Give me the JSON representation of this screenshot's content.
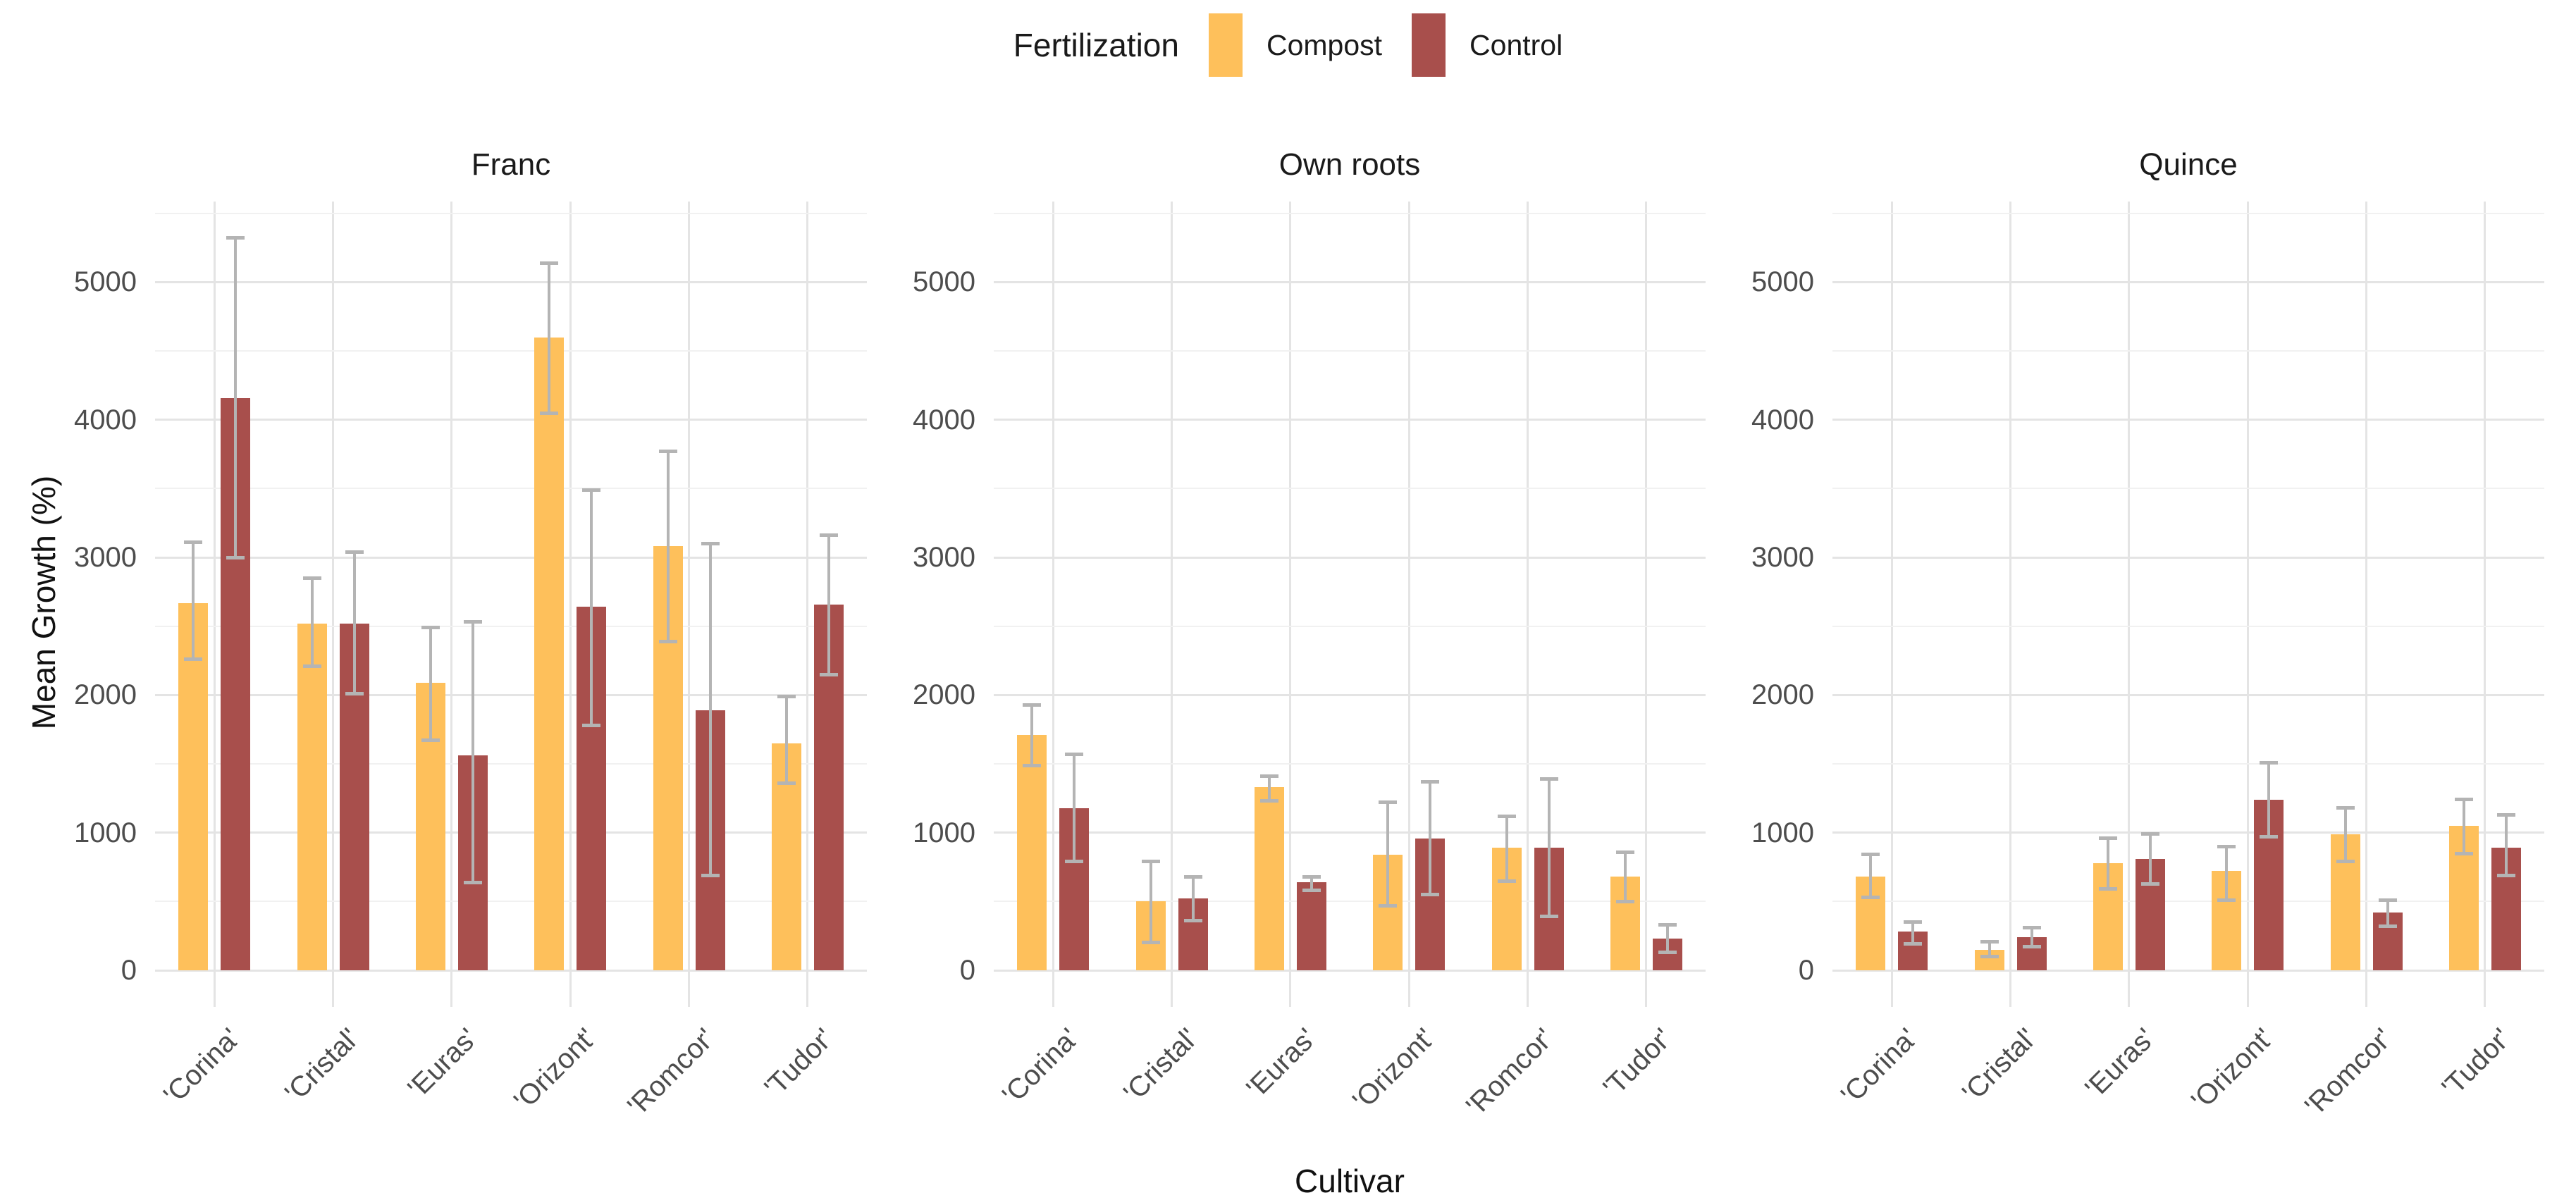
{
  "legend": {
    "title": "Fertilization",
    "items": [
      {
        "label": "Compost",
        "color": "#FEC05B"
      },
      {
        "label": "Control",
        "color": "#A84F4C"
      }
    ]
  },
  "chart_data": {
    "type": "bar",
    "title": "",
    "xlabel": "Cultivar",
    "ylabel": "Mean Growth (%)",
    "categories": [
      "'Corina'",
      "'Cristal'",
      "'Euras'",
      "'Orizont'",
      "'Romcor'",
      "'Tudor'"
    ],
    "y_ticks": [
      0,
      1000,
      2000,
      3000,
      4000,
      5000
    ],
    "ylim": [
      -266,
      5586
    ],
    "grid": "white background, light grey major gridlines every 1000 and minor every 500 (ggplot theme_minimal)",
    "legend_position": "top-center",
    "error_bars": true,
    "bar_layout": "dodged pairs per cultivar",
    "facets": [
      {
        "title": "Franc",
        "series": [
          {
            "name": "Compost",
            "values": [
              2670,
              2520,
              2090,
              4600,
              3080,
              1650
            ],
            "err_low": [
              2260,
              2210,
              1670,
              4050,
              2390,
              1360
            ],
            "err_high": [
              3110,
              2850,
              2490,
              5140,
              3770,
              1990
            ]
          },
          {
            "name": "Control",
            "values": [
              4160,
              2520,
              1560,
              2640,
              1890,
              2660
            ],
            "err_low": [
              3000,
              2010,
              640,
              1780,
              690,
              2150
            ],
            "err_high": [
              5320,
              3040,
              2530,
              3490,
              3100,
              3160
            ]
          }
        ]
      },
      {
        "title": "Own roots",
        "series": [
          {
            "name": "Compost",
            "values": [
              1710,
              500,
              1330,
              840,
              890,
              680
            ],
            "err_low": [
              1490,
              200,
              1230,
              470,
              650,
              500
            ],
            "err_high": [
              1930,
              790,
              1410,
              1220,
              1120,
              860
            ]
          },
          {
            "name": "Control",
            "values": [
              1180,
              520,
              640,
              960,
              890,
              230
            ],
            "err_low": [
              790,
              360,
              580,
              550,
              390,
              130
            ],
            "err_high": [
              1570,
              680,
              680,
              1370,
              1390,
              330
            ]
          }
        ]
      },
      {
        "title": "Quince",
        "series": [
          {
            "name": "Compost",
            "values": [
              680,
              150,
              780,
              720,
              990,
              1050
            ],
            "err_low": [
              530,
              100,
              590,
              510,
              790,
              850
            ],
            "err_high": [
              840,
              210,
              960,
              900,
              1180,
              1240
            ]
          },
          {
            "name": "Control",
            "values": [
              280,
              240,
              810,
              1240,
              420,
              890
            ],
            "err_low": [
              190,
              170,
              630,
              970,
              320,
              690
            ],
            "err_high": [
              350,
              310,
              990,
              1510,
              510,
              1130
            ]
          }
        ]
      }
    ],
    "colors": {
      "Compost": "#FEC05B",
      "Control": "#A84F4C",
      "error_bar": "#B4B4B4",
      "grid_major": "#E4E4E4",
      "grid_minor": "#F1F1F1",
      "tick_text": "#4D4D4D"
    }
  }
}
